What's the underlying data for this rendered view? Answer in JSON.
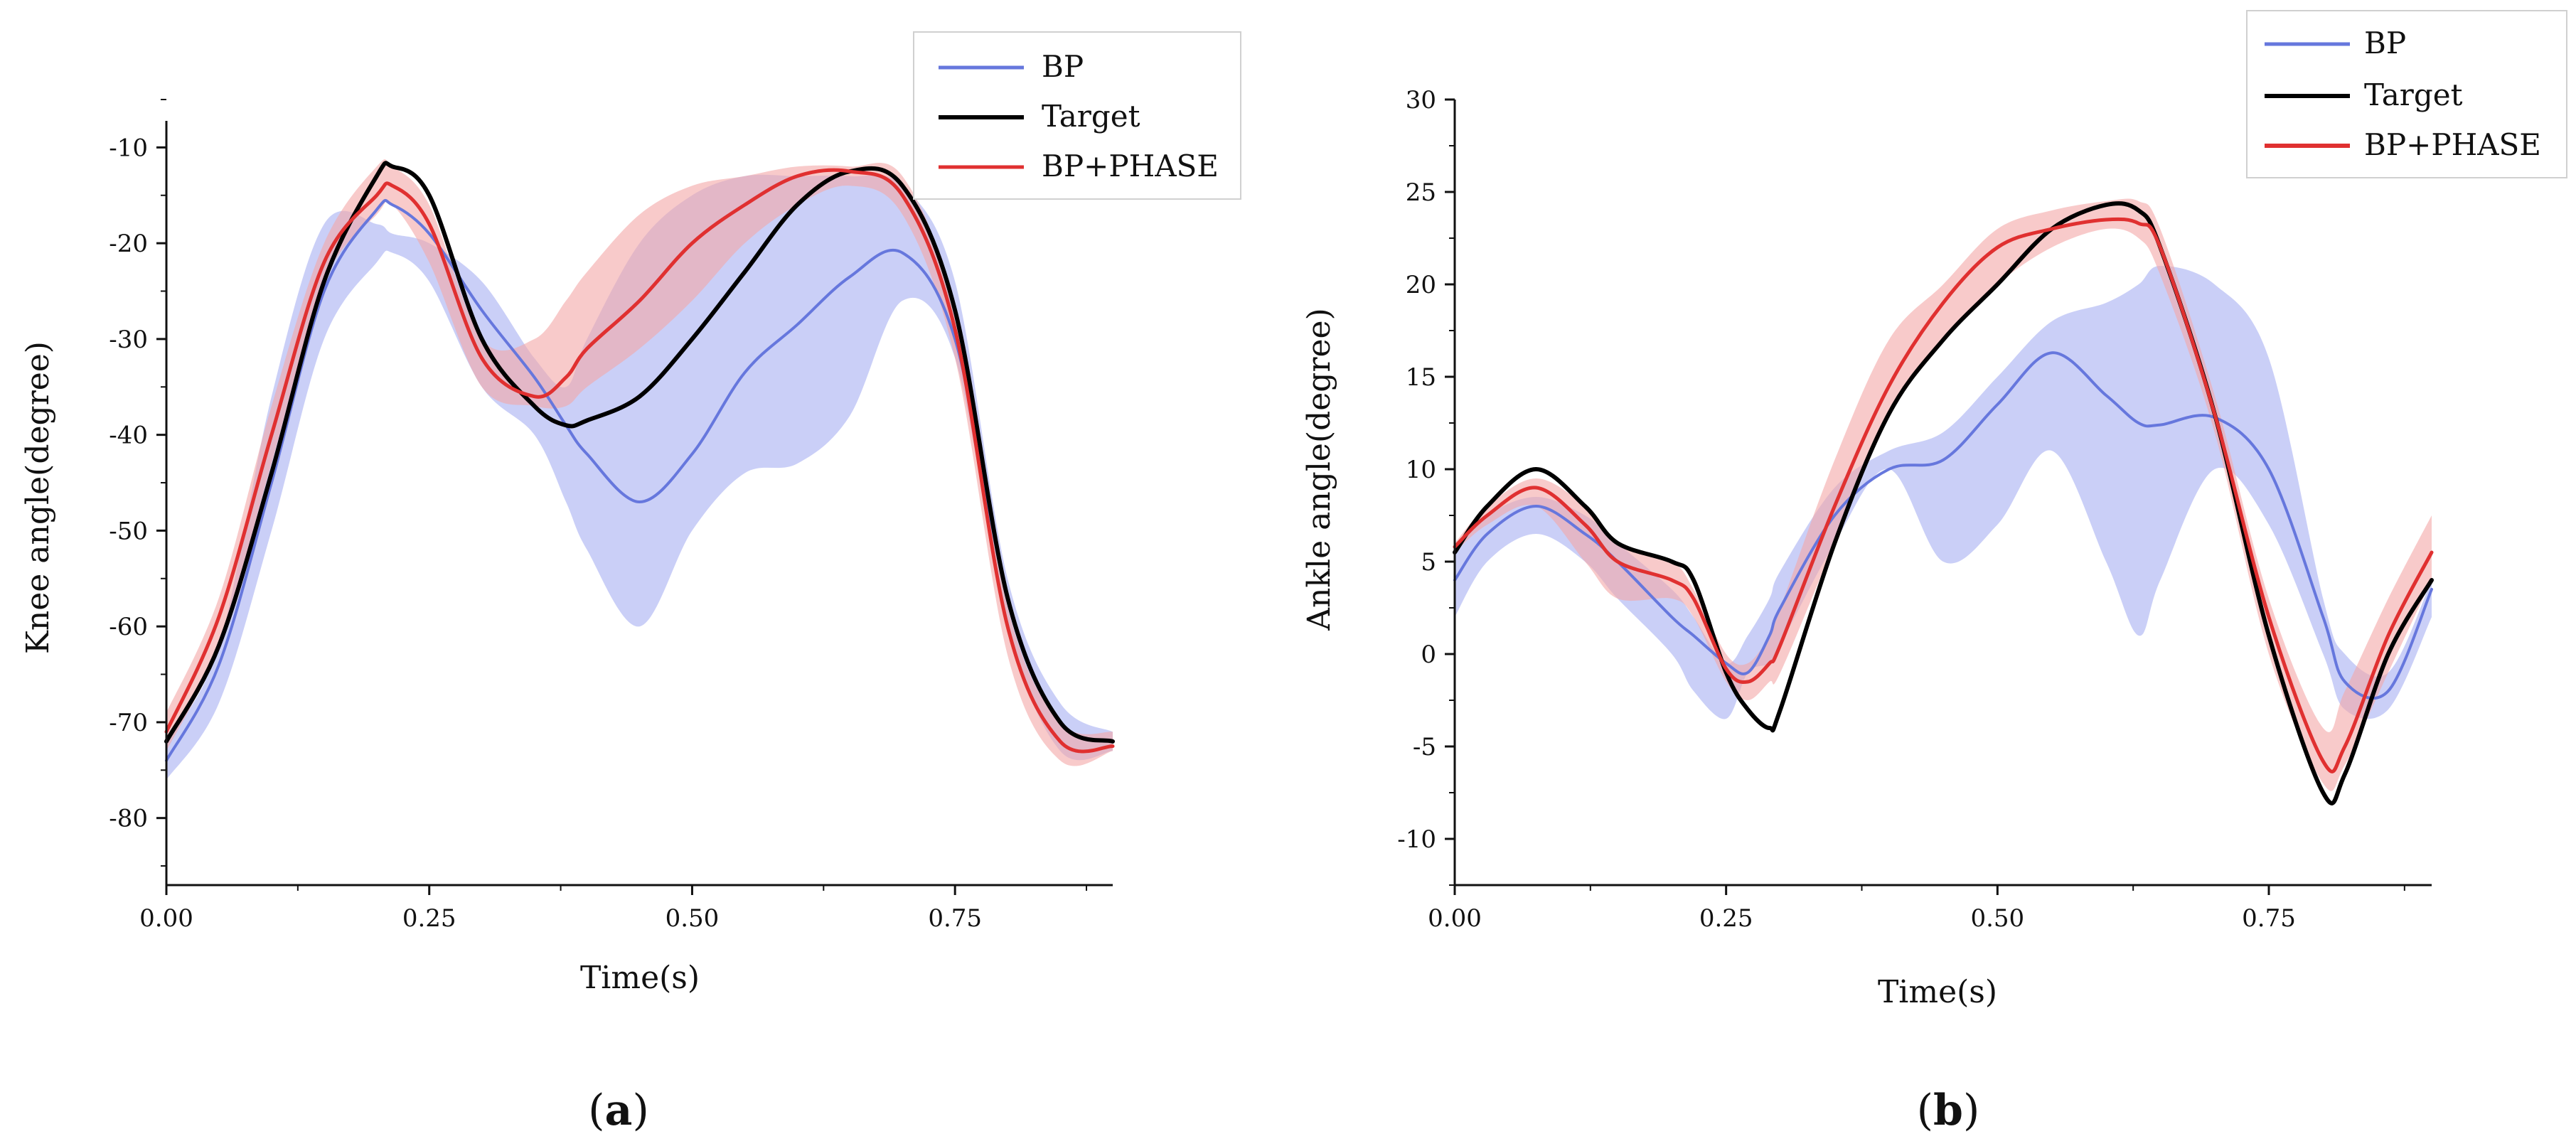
{
  "series_styles": {
    "bp_color": "#6677dd",
    "bp_band_color": "#9fa8f0",
    "target_color": "#000000",
    "phase_color": "#e03030",
    "phase_band_color": "#f4a6a6"
  },
  "chart_data": [
    {
      "id": "a",
      "type": "line",
      "caption_open": "(",
      "caption_letter": "a",
      "caption_close": ")",
      "xlabel": "Time(s)",
      "ylabel": "Knee angle(degree)",
      "xlim": [
        0,
        0.9
      ],
      "ylim": [
        -87,
        -5
      ],
      "xticks": [
        0,
        0.25,
        0.5,
        0.75
      ],
      "xtick_labels": [
        "0.00",
        "0.25",
        "0.50",
        "0.75"
      ],
      "yticks": [
        -80,
        -70,
        -60,
        -50,
        -40,
        -30,
        -20,
        -10
      ],
      "ytick_labels": [
        "-80",
        "-70",
        "-60",
        "-50",
        "-40",
        "-30",
        "-20",
        "-10"
      ],
      "legend": [
        "BP",
        "Target",
        "BP+PHASE"
      ],
      "legend_position": "top-right",
      "x": [
        0,
        0.05,
        0.1,
        0.15,
        0.2,
        0.215,
        0.25,
        0.3,
        0.35,
        0.38,
        0.4,
        0.45,
        0.5,
        0.55,
        0.6,
        0.65,
        0.7,
        0.75,
        0.8,
        0.85,
        0.9
      ],
      "series": [
        {
          "name": "BP",
          "values": [
            -74,
            -64,
            -45,
            -25,
            -16.5,
            -16,
            -19,
            -27,
            -34,
            -39,
            -42,
            -47,
            -42,
            -33.5,
            -28.5,
            -23.5,
            -21,
            -30,
            -57,
            -70,
            -72
          ],
          "band_upper": [
            -72,
            -62,
            -36,
            -18,
            -18,
            -19,
            -20,
            -24,
            -32,
            -35,
            -30,
            -20,
            -15,
            -13,
            -13,
            -13,
            -14,
            -24,
            -55,
            -68,
            -71
          ],
          "band_lower": [
            -76,
            -68,
            -50,
            -30,
            -22,
            -21,
            -24,
            -35,
            -40,
            -47,
            -52,
            -60,
            -50,
            -44,
            -43,
            -38,
            -26,
            -32,
            -60,
            -73,
            -73
          ]
        },
        {
          "name": "Target",
          "values": [
            -72,
            -62,
            -44,
            -24,
            -13,
            -12,
            -15,
            -30,
            -37,
            -39,
            -38.5,
            -36,
            -30,
            -23,
            -16,
            -12.5,
            -14,
            -27,
            -57,
            -70,
            -72
          ],
          "band_upper": null,
          "band_lower": null
        },
        {
          "name": "BP+PHASE",
          "values": [
            -71,
            -59,
            -40,
            -22,
            -15,
            -14,
            -18,
            -32,
            -36,
            -34,
            -31,
            -26,
            -20,
            -16,
            -13,
            -12.5,
            -15,
            -29,
            -60,
            -72,
            -72.5
          ],
          "band_upper": [
            -69,
            -57,
            -37,
            -20,
            -12,
            -12,
            -16,
            -30,
            -30,
            -26,
            -23,
            -17,
            -14,
            -13,
            -12,
            -12,
            -13,
            -27,
            -58,
            -70,
            -71
          ],
          "band_lower": [
            -73,
            -62,
            -43,
            -24,
            -17,
            -16,
            -22,
            -35,
            -37,
            -37,
            -35,
            -31,
            -26,
            -20,
            -16,
            -14,
            -17,
            -32,
            -63,
            -74,
            -73
          ]
        }
      ]
    },
    {
      "id": "b",
      "type": "line",
      "caption_open": "(",
      "caption_letter": "b",
      "caption_close": ")",
      "xlabel": "Time(s)",
      "ylabel": "Ankle angle(degree)",
      "xlim": [
        0,
        0.9
      ],
      "ylim": [
        -12.5,
        30
      ],
      "xticks": [
        0,
        0.25,
        0.5,
        0.75
      ],
      "xtick_labels": [
        "0.00",
        "0.25",
        "0.50",
        "0.75"
      ],
      "yticks": [
        -10,
        -5,
        0,
        5,
        10,
        15,
        20,
        25,
        30
      ],
      "ytick_labels": [
        "-10",
        "-5",
        "0",
        "5",
        "10",
        "15",
        "20",
        "25",
        "30"
      ],
      "legend": [
        "BP",
        "Target",
        "BP+PHASE"
      ],
      "legend_position": "top-right",
      "x": [
        0,
        0.03,
        0.075,
        0.12,
        0.15,
        0.2,
        0.22,
        0.25,
        0.27,
        0.29,
        0.3,
        0.35,
        0.4,
        0.45,
        0.5,
        0.55,
        0.6,
        0.63,
        0.65,
        0.7,
        0.75,
        0.8,
        0.82,
        0.86,
        0.9
      ],
      "series": [
        {
          "name": "BP",
          "values": [
            4,
            6.5,
            8,
            6.5,
            5,
            2,
            1,
            -0.5,
            -1,
            1,
            2.5,
            7.5,
            10,
            10.5,
            13.5,
            16.3,
            14,
            12.5,
            12.4,
            12.8,
            10,
            2,
            -1.5,
            -2,
            3.5
          ],
          "band_upper": [
            5.5,
            7.5,
            8.5,
            7.5,
            6,
            3.5,
            2,
            -0.5,
            1,
            3,
            4.5,
            9,
            11,
            12,
            15,
            18,
            19,
            20,
            21,
            20,
            16,
            3,
            0,
            -1,
            4
          ],
          "band_lower": [
            2,
            5,
            6.5,
            5,
            3,
            0,
            -2,
            -3.5,
            -1,
            -0.5,
            0.5,
            6,
            10,
            5,
            7,
            11,
            5,
            1,
            4,
            10,
            7,
            0,
            -3,
            -3,
            2
          ]
        },
        {
          "name": "Target",
          "values": [
            5.5,
            8,
            10,
            8,
            6,
            5,
            4,
            -1,
            -3,
            -4,
            -3,
            6,
            13,
            17,
            20,
            23,
            24.3,
            24,
            22,
            13,
            1,
            -7.5,
            -6.5,
            0,
            4
          ]
        },
        {
          "name": "BP+PHASE",
          "values": [
            5.8,
            7.5,
            9,
            7,
            5,
            4,
            3,
            -0.8,
            -1.5,
            -0.5,
            0.5,
            8,
            14.5,
            19,
            22,
            23,
            23.5,
            23.3,
            22,
            13,
            2,
            -5.8,
            -5,
            1,
            5.5
          ],
          "band_upper": [
            6,
            8,
            9.5,
            8,
            6,
            5,
            3.5,
            0,
            -0.5,
            1,
            2.5,
            10.5,
            17,
            20,
            23,
            24,
            24.5,
            24.5,
            23,
            14,
            3,
            -4,
            -2,
            3,
            7.5
          ],
          "band_lower": [
            5.5,
            7,
            8,
            5,
            3,
            3,
            2,
            -1.5,
            -2.5,
            -1.5,
            -1,
            6,
            13,
            17,
            20,
            22,
            23,
            22.5,
            20.5,
            12,
            0,
            -7,
            -6,
            -1,
            4
          ]
        }
      ]
    }
  ]
}
